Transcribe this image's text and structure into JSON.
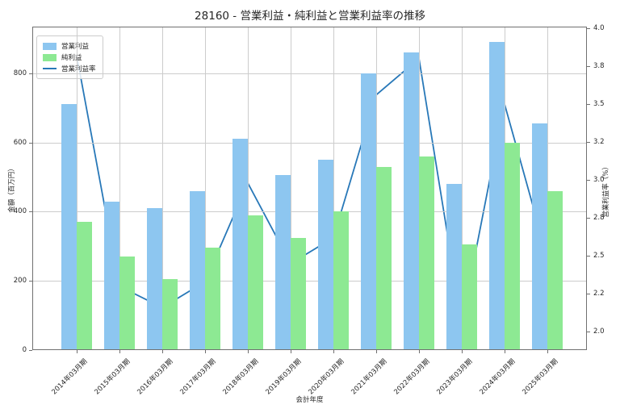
{
  "title": "28160 - 営業利益・純利益と営業利益率の推移",
  "chart_data": {
    "type": "bar",
    "categories": [
      "2014年03月期",
      "2015年03月期",
      "2016年03月期",
      "2017年03月期",
      "2018年03月期",
      "2019年03月期",
      "2020年03月期",
      "2021年03月期",
      "2022年03月期",
      "2023年03月期",
      "2024年03月期",
      "2025年03月期"
    ],
    "series": [
      {
        "name": "営業利益",
        "type": "bar",
        "axis": "left",
        "color": "#8dc6f0",
        "values": [
          710,
          430,
          410,
          460,
          610,
          505,
          550,
          800,
          860,
          480,
          890,
          655
        ]
      },
      {
        "name": "純利益",
        "type": "bar",
        "axis": "left",
        "color": "#8de993",
        "values": [
          370,
          270,
          205,
          295,
          390,
          325,
          400,
          530,
          560,
          305,
          600,
          460
        ]
      },
      {
        "name": "営業利益率",
        "type": "line",
        "axis": "right",
        "color": "#2878b8",
        "values": [
          3.82,
          2.3,
          2.16,
          2.33,
          2.98,
          2.45,
          2.62,
          3.56,
          3.8,
          2.06,
          3.5,
          2.49
        ]
      }
    ],
    "xlabel": "会計年度",
    "ylabel_left": "金額（百万円）",
    "ylabel_right": "営業利益率（%）",
    "ylim_left": [
      0,
      935
    ],
    "ylim_right": [
      1.88,
      4.01
    ],
    "yticks_left": {
      "values": [
        0,
        200,
        400,
        600,
        800
      ],
      "labels": [
        "0",
        "200",
        "400",
        "600",
        "800"
      ]
    },
    "yticks_right": {
      "values": [
        2.0,
        2.25,
        2.5,
        2.75,
        3.0,
        3.25,
        3.5,
        3.75,
        4.0
      ],
      "labels": [
        "2.0",
        "2.2",
        "2.5",
        "2.8",
        "3.0",
        "3.2",
        "3.5",
        "3.8",
        "4.0"
      ]
    },
    "grid": true,
    "legend_position": "upper left"
  }
}
